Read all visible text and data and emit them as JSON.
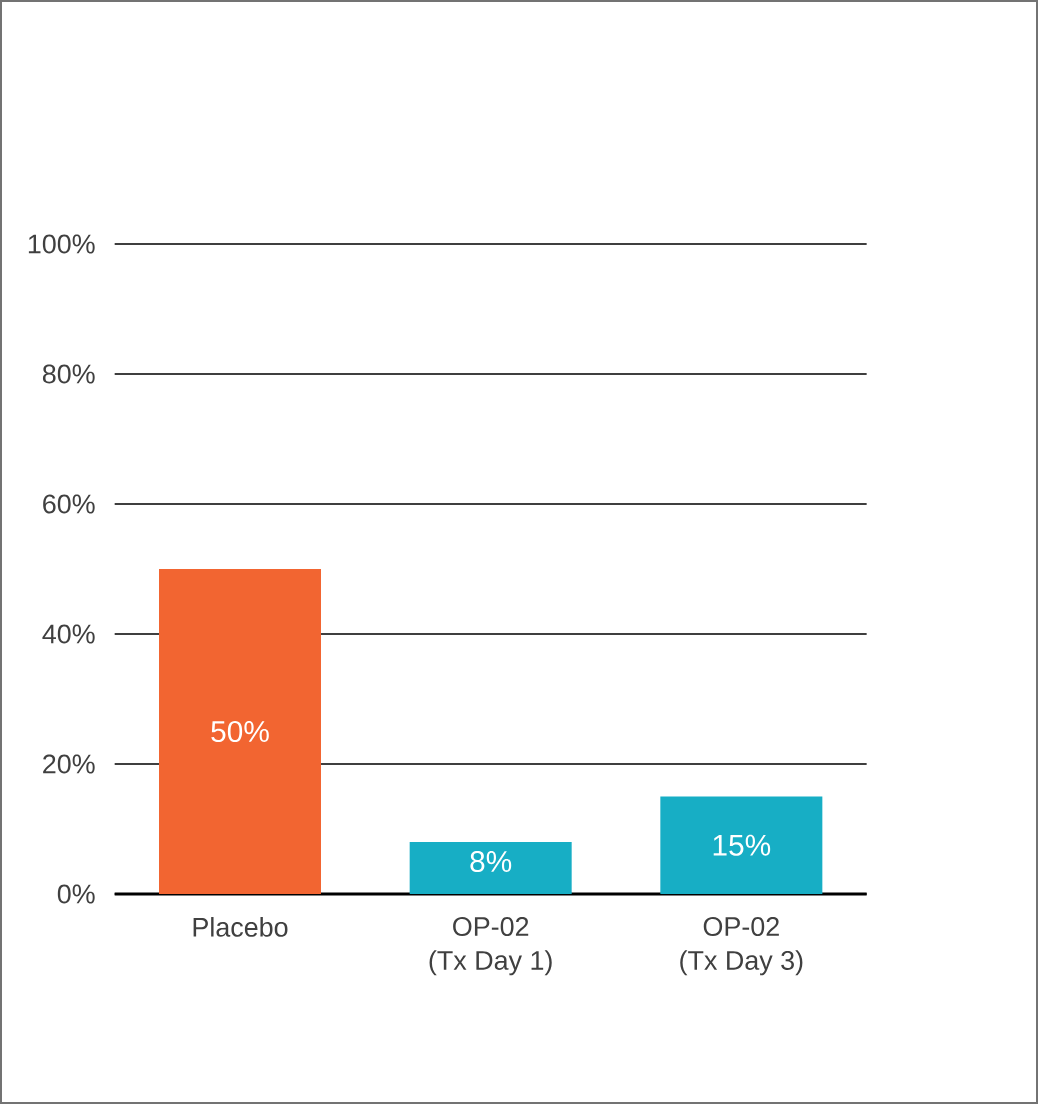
{
  "chart_data": {
    "type": "bar",
    "categories": [
      "Placebo",
      "OP-02\n(Tx Day 1)",
      "OP-02\n(Tx Day 3)"
    ],
    "values": [
      50,
      8,
      15
    ],
    "colors": [
      "#f26531",
      "#17aec5",
      "#17aec5"
    ],
    "value_labels": [
      "50%",
      "8%",
      "15%"
    ],
    "ylim": [
      0,
      100
    ],
    "yticks": [
      {
        "value": 0,
        "label": "0%"
      },
      {
        "value": 20,
        "label": "20%"
      },
      {
        "value": 40,
        "label": "40%"
      },
      {
        "value": 60,
        "label": "60%"
      },
      {
        "value": 80,
        "label": "80%"
      },
      {
        "value": 100,
        "label": "100%"
      }
    ],
    "grid": "y"
  }
}
